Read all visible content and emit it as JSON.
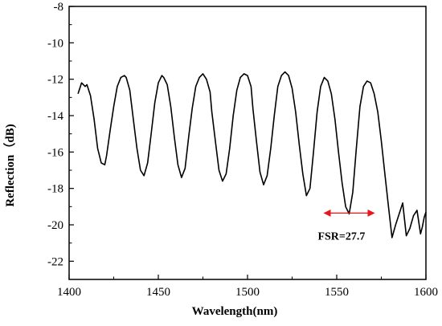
{
  "chart_data": {
    "type": "line",
    "xlabel": "Wavelength(nm)",
    "ylabel": "Reflection（dB)",
    "xlim": [
      1400,
      1600
    ],
    "ylim": [
      -23,
      -8
    ],
    "xticks": [
      1400,
      1450,
      1500,
      1550,
      1600
    ],
    "yticks": [
      -8,
      -10,
      -12,
      -14,
      -16,
      -18,
      -20,
      -22
    ],
    "grid": false,
    "series": [
      {
        "color": "#000000",
        "x": [
          1405,
          1407,
          1409,
          1410,
          1412,
          1414,
          1416,
          1418,
          1420,
          1421,
          1423,
          1425,
          1427,
          1429,
          1431,
          1432,
          1434,
          1436,
          1438,
          1440,
          1442,
          1444,
          1446,
          1448,
          1450,
          1452,
          1453,
          1455,
          1457,
          1459,
          1461,
          1463,
          1465,
          1467,
          1469,
          1471,
          1473,
          1475,
          1477,
          1479,
          1480,
          1482,
          1484,
          1486,
          1488,
          1490,
          1492,
          1494,
          1496,
          1498,
          1500,
          1502,
          1503,
          1505,
          1507,
          1509,
          1511,
          1513,
          1515,
          1517,
          1519,
          1521,
          1523,
          1525,
          1527,
          1529,
          1531,
          1533,
          1535,
          1537,
          1539,
          1541,
          1543,
          1545,
          1547,
          1549,
          1551,
          1553,
          1555,
          1557,
          1559,
          1561,
          1563,
          1565,
          1567,
          1569,
          1571,
          1573,
          1575,
          1577,
          1579,
          1581,
          1583,
          1585,
          1587,
          1589,
          1591,
          1593,
          1595,
          1597,
          1598,
          1599,
          1600
        ],
        "y": [
          -12.8,
          -12.2,
          -12.4,
          -12.3,
          -12.9,
          -14.2,
          -15.8,
          -16.6,
          -16.7,
          -16.2,
          -14.8,
          -13.5,
          -12.4,
          -11.9,
          -11.8,
          -11.9,
          -12.6,
          -14.2,
          -15.8,
          -17.0,
          -17.3,
          -16.6,
          -15.0,
          -13.3,
          -12.2,
          -11.8,
          -11.9,
          -12.3,
          -13.5,
          -15.2,
          -16.7,
          -17.4,
          -16.9,
          -15.2,
          -13.6,
          -12.4,
          -11.9,
          -11.7,
          -12.0,
          -12.7,
          -13.8,
          -15.4,
          -17.0,
          -17.6,
          -17.2,
          -15.8,
          -14.0,
          -12.6,
          -11.9,
          -11.7,
          -11.8,
          -12.4,
          -13.6,
          -15.4,
          -17.1,
          -17.8,
          -17.3,
          -15.8,
          -14.0,
          -12.4,
          -11.8,
          -11.6,
          -11.8,
          -12.5,
          -13.8,
          -15.6,
          -17.2,
          -18.4,
          -18.0,
          -16.0,
          -13.8,
          -12.4,
          -11.9,
          -12.1,
          -12.8,
          -14.2,
          -16.0,
          -17.7,
          -19.0,
          -19.4,
          -18.2,
          -15.8,
          -13.5,
          -12.4,
          -12.1,
          -12.2,
          -12.8,
          -13.8,
          -15.4,
          -17.2,
          -19.0,
          -20.7,
          -20.0,
          -19.4,
          -18.8,
          -20.6,
          -20.2,
          -19.5,
          -19.2,
          -20.5,
          -20.1,
          -19.6,
          -19.3
        ]
      }
    ],
    "annotations": [
      {
        "text": "FSR=27.7",
        "arrow_from": 1543,
        "arrow_to": 1571,
        "arrow_y": -19.4,
        "arrow_color": "#e8151b"
      }
    ]
  }
}
